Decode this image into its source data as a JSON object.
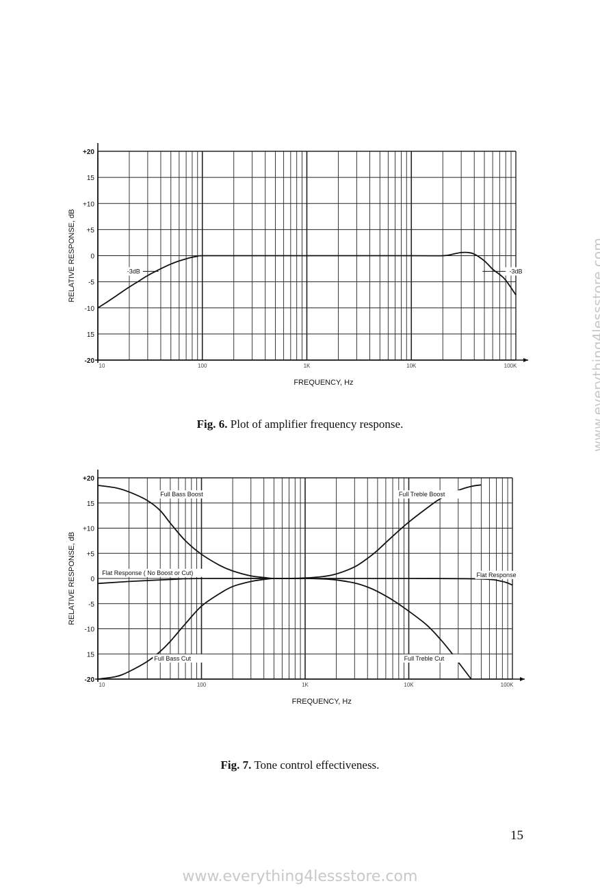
{
  "chart_data": [
    {
      "type": "line",
      "title": "",
      "xlabel": "FREQUENCY, Hz",
      "ylabel": "RELATIVE RESPONSE, dB",
      "xscale": "log",
      "xlim": [
        10,
        100000
      ],
      "ylim": [
        -20,
        20
      ],
      "xticks": [
        "10",
        "100",
        "1K",
        "10K",
        "100K"
      ],
      "yticks": [
        "+20",
        "15",
        "+10",
        "+5",
        "0",
        "-5",
        "-10",
        "15",
        "-20"
      ],
      "grid": true,
      "series": [
        {
          "x": [
            10,
            12,
            15,
            20,
            25,
            30,
            40,
            50,
            60,
            70,
            80,
            90,
            100,
            200,
            1000,
            10000,
            20000,
            25000,
            30000,
            35000,
            40000,
            50000,
            60000,
            70000,
            80000,
            100000
          ],
          "y": [
            -10,
            -9,
            -7.7,
            -6,
            -4.8,
            -3.8,
            -2.5,
            -1.6,
            -1.0,
            -0.6,
            -0.3,
            -0.1,
            0,
            0,
            0,
            0,
            0,
            0.3,
            0.6,
            0.6,
            0.3,
            -1,
            -2.6,
            -3.6,
            -4.7,
            -7.5
          ]
        }
      ],
      "annotations": [
        "-3dB",
        "-3dB"
      ]
    },
    {
      "type": "line",
      "title": "",
      "xlabel": "FREQUENCY, Hz",
      "ylabel": "RELATIVE RESPONSE, dB",
      "xscale": "log",
      "xlim": [
        10,
        100000
      ],
      "ylim": [
        -20,
        20
      ],
      "xticks": [
        "10",
        "100",
        "1K",
        "10K",
        "100K"
      ],
      "yticks": [
        "+20",
        "15",
        "+10",
        "+5",
        "0",
        "-5",
        "-10",
        "15",
        "-20"
      ],
      "grid": true,
      "series": [
        {
          "name": "Full Bass Boost",
          "x": [
            10,
            15,
            20,
            30,
            40,
            50,
            70,
            100,
            150,
            200,
            300,
            400,
            500,
            700
          ],
          "y": [
            18.5,
            18,
            17.2,
            15.5,
            13.5,
            11,
            7.5,
            4.8,
            2.6,
            1.5,
            0.5,
            0.2,
            0,
            0
          ]
        },
        {
          "name": "Full Bass Cut",
          "x": [
            10,
            15,
            20,
            30,
            40,
            50,
            70,
            100,
            150,
            200,
            300,
            400,
            500,
            700
          ],
          "y": [
            -20,
            -19.5,
            -18.5,
            -16.5,
            -14.5,
            -12.5,
            -9,
            -5.5,
            -3,
            -1.6,
            -0.6,
            -0.2,
            0,
            0
          ]
        },
        {
          "name": "Full Treble Boost",
          "x": [
            700,
            1000,
            1500,
            2000,
            3000,
            4000,
            5000,
            7000,
            10000,
            15000,
            20000,
            30000,
            40000,
            50000
          ],
          "y": [
            0,
            0.1,
            0.4,
            0.9,
            2.3,
            4,
            5.6,
            8.4,
            11.2,
            14,
            15.8,
            17.5,
            18.3,
            18.6
          ]
        },
        {
          "name": "Full Treble Cut",
          "x": [
            700,
            1000,
            1500,
            2000,
            3000,
            4000,
            5000,
            7000,
            10000,
            15000,
            20000,
            25000,
            30000,
            40000
          ],
          "y": [
            0,
            0,
            -0.1,
            -0.3,
            -0.9,
            -1.7,
            -2.6,
            -4.3,
            -6.5,
            -9.3,
            -12,
            -14.4,
            -16.6,
            -20
          ]
        },
        {
          "name": "Flat Response",
          "x": [
            10,
            20,
            50,
            100,
            1000,
            10000,
            50000,
            80000,
            100000
          ],
          "y": [
            -1,
            -0.6,
            -0.2,
            0,
            0,
            0,
            -0.1,
            -0.6,
            -1.3
          ]
        }
      ],
      "annotations": [
        "Full Bass Boost",
        "Full Treble Boost",
        "Flat Response ( No Boost or Cut)",
        "Flat Response",
        "Full Bass Cut",
        "Full Treble Cut"
      ]
    }
  ],
  "captions": {
    "fig6_label": "Fig. 6.",
    "fig6_text": "Plot of amplifier frequency response.",
    "fig7_label": "Fig. 7.",
    "fig7_text": "Tone control effectiveness."
  },
  "page_number": "15",
  "watermark": "www.everything4lessstore.com"
}
